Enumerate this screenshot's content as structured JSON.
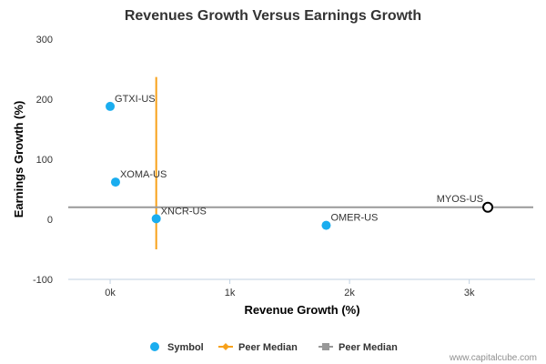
{
  "chart_data": {
    "type": "scatter",
    "title": "Revenues Growth Versus Earnings Growth",
    "xlabel": "Revenue Growth (%)",
    "ylabel": "Earnings Growth (%)",
    "xlim": [
      -350,
      3550
    ],
    "ylim": [
      -100,
      300
    ],
    "x_ticks": [
      0,
      1000,
      2000,
      3000
    ],
    "x_tick_labels": [
      "0k",
      "1k",
      "2k",
      "3k"
    ],
    "y_ticks": [
      -100,
      0,
      100,
      200,
      300
    ],
    "y_tick_labels": [
      "-100",
      "0",
      "100",
      "200",
      "300"
    ],
    "grid": false,
    "legend_position": "bottom",
    "series": [
      {
        "name": "Symbol",
        "color": "#1aadef",
        "marker": "circle",
        "points": [
          {
            "label": "GTXI-US",
            "x": 0,
            "y": 188
          },
          {
            "label": "XOMA-US",
            "x": 45,
            "y": 62
          },
          {
            "label": "XNCR-US",
            "x": 385,
            "y": 1
          },
          {
            "label": "OMER-US",
            "x": 1805,
            "y": -10
          }
        ]
      },
      {
        "name": "MYOS-US",
        "color": "#000000",
        "marker": "hollow-circle",
        "show_in_legend": false,
        "points": [
          {
            "label": "MYOS-US",
            "x": 3155,
            "y": 20
          }
        ]
      }
    ],
    "reference_lines": [
      {
        "name": "Peer Median",
        "orientation": "vertical",
        "x": 385,
        "y_from": -50,
        "y_to": 237,
        "color": "#f7a11a"
      },
      {
        "name": "Peer Median",
        "orientation": "horizontal",
        "y": 20,
        "color": "#999999"
      }
    ],
    "legend": [
      {
        "label": "Symbol",
        "symbol": "circle",
        "color": "#1aadef"
      },
      {
        "label": "Peer Median",
        "symbol": "line-diamond",
        "color": "#f7a11a"
      },
      {
        "label": "Peer Median",
        "symbol": "line-square",
        "color": "#999999"
      }
    ]
  },
  "credit": "www.capitalcube.com"
}
